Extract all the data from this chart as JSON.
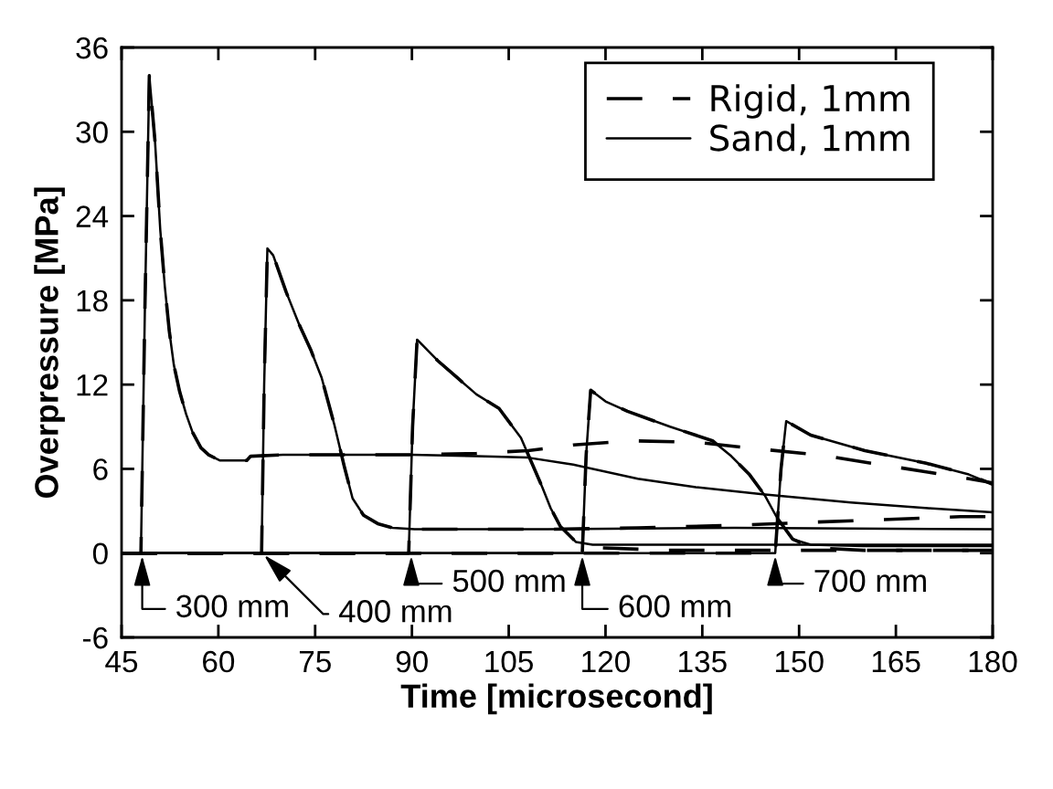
{
  "chart_data": {
    "type": "line",
    "xlabel": "Time [microsecond]",
    "ylabel": "Overpressure [MPa]",
    "xlim": [
      45,
      180
    ],
    "xticks": [
      45,
      60,
      75,
      90,
      105,
      120,
      135,
      150,
      165,
      180
    ],
    "ylim": [
      -6,
      36
    ],
    "yticks": [
      -6,
      0,
      6,
      12,
      18,
      24,
      30,
      36
    ],
    "legend": "top right",
    "marker": "none",
    "series": [
      {
        "name": "Rigid, 1mm",
        "color": "#000000",
        "line_style": "dashed",
        "x": [
          45,
          48.0,
          48.6,
          49.3,
          50.2,
          51,
          51.7,
          52.4,
          53.1,
          54,
          55,
          56,
          57.3,
          58.5,
          60.2,
          64.4,
          65,
          70,
          80,
          90,
          100,
          108,
          115,
          124,
          134,
          142,
          153,
          164,
          175,
          180
        ],
        "values": [
          0,
          0,
          17,
          34,
          29.2,
          23,
          19,
          15.8,
          13.4,
          11.5,
          9.9,
          8.6,
          7.5,
          7.0,
          6.6,
          6.6,
          6.9,
          7.0,
          7.0,
          7.0,
          7.1,
          7.3,
          7.7,
          8.0,
          7.9,
          7.5,
          7.0,
          6.2,
          5.4,
          5.0
        ]
      },
      {
        "color": "#000000",
        "line_style": "dashed",
        "x": [
          45,
          66.7,
          67.1,
          67.6,
          68.5,
          70.5,
          72.5,
          74.3,
          76,
          78,
          79.5,
          80.8,
          82.5,
          84.7,
          87,
          90.4,
          100,
          111,
          125,
          141,
          152,
          164,
          175,
          180
        ],
        "values": [
          0,
          0,
          12,
          21.7,
          21.2,
          18.6,
          16.3,
          14.5,
          12.5,
          9.1,
          6.2,
          3.9,
          2.7,
          2.1,
          1.8,
          1.7,
          1.7,
          1.7,
          1.8,
          2.0,
          2.2,
          2.4,
          2.6,
          2.6
        ]
      },
      {
        "color": "#000000",
        "line_style": "dashed",
        "x": [
          45,
          89.5,
          90.1,
          90.8,
          94,
          97,
          100,
          103.5,
          106.9,
          108.5,
          110.2,
          111.5,
          113,
          115.4,
          118,
          130,
          150,
          180
        ],
        "values": [
          0,
          0,
          9,
          15.2,
          13.7,
          12.5,
          11.3,
          10.3,
          8.2,
          6.5,
          4.7,
          3.2,
          1.9,
          0.8,
          0.4,
          0.2,
          0.2,
          0.2
        ]
      },
      {
        "color": "#000000",
        "line_style": "dashed",
        "x": [
          45,
          116.4,
          117,
          117.7,
          120,
          123.4,
          130,
          136.6,
          139.5,
          142.3,
          144.7,
          146.6,
          149,
          151.8,
          160,
          180
        ],
        "values": [
          0,
          0,
          7,
          11.6,
          10.8,
          10.1,
          9.0,
          8.0,
          6.9,
          5.6,
          4.1,
          2.5,
          1.0,
          0.4,
          0.2,
          0.2
        ]
      },
      {
        "color": "#000000",
        "line_style": "dashed",
        "x": [
          45,
          146.3,
          147.2,
          148,
          151.8,
          160.2,
          169.7,
          176.3,
          180
        ],
        "values": [
          0,
          0,
          6,
          9.4,
          8.4,
          7.3,
          6.4,
          5.6,
          4.9
        ]
      },
      {
        "name": "Sand, 1mm",
        "color": "#000000",
        "line_style": "solid",
        "x": [
          45,
          48.0,
          48.6,
          49.3,
          50.2,
          51,
          51.7,
          52.4,
          53.1,
          54,
          55,
          56,
          57.3,
          58.5,
          60.2,
          64.4,
          65,
          70,
          80,
          90,
          100,
          108,
          115,
          125,
          134,
          144,
          158,
          170,
          180
        ],
        "values": [
          0,
          0,
          17,
          34,
          29.2,
          23,
          19,
          15.8,
          13.4,
          11.5,
          9.9,
          8.6,
          7.5,
          7.0,
          6.6,
          6.6,
          6.9,
          7.0,
          7.0,
          7.0,
          6.9,
          6.8,
          6.3,
          5.3,
          4.7,
          4.2,
          3.6,
          3.2,
          2.9
        ]
      },
      {
        "color": "#000000",
        "line_style": "solid",
        "x": [
          45,
          66.7,
          67.1,
          67.6,
          68.5,
          70.5,
          72.5,
          74.3,
          76,
          78,
          79.5,
          80.8,
          82.5,
          84.7,
          87,
          90.4,
          111,
          140,
          180
        ],
        "values": [
          0,
          0,
          12,
          21.7,
          21.2,
          18.6,
          16.3,
          14.5,
          12.5,
          9.1,
          6.2,
          3.9,
          2.7,
          2.1,
          1.8,
          1.7,
          1.7,
          1.8,
          1.7
        ]
      },
      {
        "color": "#000000",
        "line_style": "solid",
        "x": [
          45,
          89.5,
          90.1,
          90.8,
          94,
          97,
          100,
          103.5,
          106.9,
          108.5,
          110.2,
          111.5,
          113,
          115.4,
          118,
          130,
          150,
          180
        ],
        "values": [
          0,
          0,
          9,
          15.2,
          13.7,
          12.5,
          11.3,
          10.3,
          8.2,
          6.5,
          4.7,
          3.2,
          1.9,
          0.8,
          0.6,
          0.6,
          0.6,
          0.6
        ]
      },
      {
        "color": "#000000",
        "line_style": "solid",
        "x": [
          45,
          116.4,
          117,
          117.7,
          120,
          123.4,
          130,
          136.6,
          139.5,
          142.3,
          144.7,
          146.6,
          149,
          151.8,
          160,
          180
        ],
        "values": [
          0,
          0,
          7,
          11.6,
          10.8,
          10.1,
          9.0,
          8.0,
          6.9,
          5.6,
          4.1,
          2.5,
          1.0,
          0.6,
          0.5,
          0.5
        ]
      },
      {
        "color": "#000000",
        "line_style": "solid",
        "x": [
          45,
          146.3,
          147.2,
          148,
          151.8,
          160.2,
          169.7,
          176.3,
          180
        ],
        "values": [
          0,
          0,
          6,
          9.4,
          8.4,
          7.3,
          6.4,
          5.6,
          4.9
        ]
      }
    ],
    "annotations": [
      {
        "text": "300 mm",
        "x": 48.2,
        "y": 0
      },
      {
        "text": "400 mm",
        "x": 66.8,
        "y": 0
      },
      {
        "text": "500 mm",
        "x": 89.9,
        "y": 0
      },
      {
        "text": "600 mm",
        "x": 116.4,
        "y": 0
      },
      {
        "text": "700 mm",
        "x": 146.3,
        "y": 0
      }
    ]
  }
}
